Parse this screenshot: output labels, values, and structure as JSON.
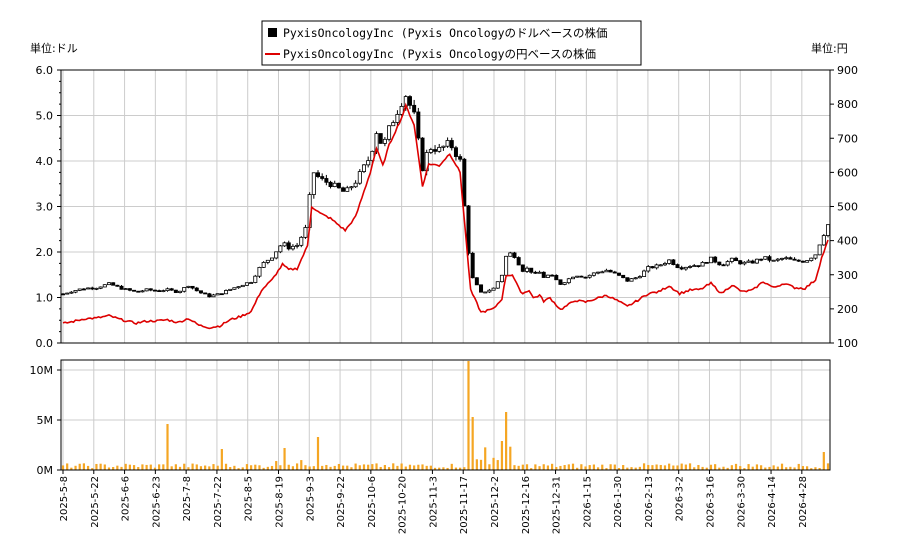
{
  "chart_data": [
    {
      "type": "candlestick",
      "panel": "price",
      "legend": [
        {
          "label": "PyxisOncologyInc (Pyxis Oncologyのドルベースの株価",
          "color": "#000000",
          "marker": "square"
        },
        {
          "label": "PyxisOncologyInc (Pyxis Oncologyの円ベースの株価",
          "color": "#dd0000",
          "marker": "line"
        }
      ],
      "left_unit": "単位:ドル",
      "right_unit": "単位:円",
      "y_left": {
        "min": 0.0,
        "max": 6.0,
        "ticks": [
          "0.0",
          "1.0",
          "2.0",
          "3.0",
          "4.0",
          "5.0",
          "6.0"
        ]
      },
      "y_right": {
        "min": 100,
        "max": 900,
        "ticks": [
          "100",
          "200",
          "300",
          "400",
          "500",
          "600",
          "700",
          "800",
          "900"
        ]
      },
      "grid": true,
      "x_dates": [
        "2025-5-8",
        "2025-5-22",
        "2025-6-6",
        "2025-6-23",
        "2025-7-8",
        "2025-7-22",
        "2025-8-5",
        "2025-8-19",
        "2025-9-3",
        "2025-9-22",
        "2025-10-6",
        "2025-10-20",
        "2025-11-3",
        "2025-11-17",
        "2025-12-2",
        "2025-12-16",
        "2025-12-31",
        "2026-1-15",
        "2026-1-30",
        "2026-2-13",
        "2026-3-2",
        "2026-3-16",
        "2026-3-30",
        "2026-4-14",
        "2026-4-28"
      ],
      "series": [
        {
          "name": "ドル",
          "axis": "left",
          "color": "#000000",
          "x": [
            0,
            5,
            10,
            16,
            22,
            28,
            35,
            40,
            45,
            50,
            55,
            60,
            65,
            70,
            75,
            80,
            85,
            90,
            95,
            100,
            105,
            108,
            112,
            117,
            119,
            123,
            128,
            135,
            140,
            147,
            150,
            153,
            156,
            162,
            164,
            168,
            172,
            175,
            180,
            185,
            190,
            195,
            200,
            206,
            210,
            212,
            215,
            218,
            220,
            223,
            225,
            228,
            230,
            233,
            238,
            240,
            245,
            250,
            255,
            260,
            265,
            270,
            275,
            280,
            285,
            290,
            295,
            300,
            305,
            310,
            315,
            320,
            325,
            330,
            335,
            340,
            345,
            350,
            355,
            360,
            363,
            366
          ],
          "values": [
            1.08,
            1.15,
            1.2,
            1.22,
            1.3,
            1.2,
            1.12,
            1.17,
            1.15,
            1.17,
            1.12,
            1.27,
            1.12,
            1.03,
            1.08,
            1.18,
            1.27,
            1.35,
            1.72,
            1.9,
            2.2,
            2.1,
            2.15,
            2.6,
            3.8,
            3.6,
            3.5,
            3.3,
            3.55,
            4.1,
            4.65,
            4.3,
            4.7,
            5.3,
            5.45,
            5.0,
            3.85,
            4.3,
            4.25,
            4.4,
            4.0,
            1.5,
            1.1,
            1.2,
            1.5,
            1.9,
            2.0,
            1.75,
            1.6,
            1.65,
            1.5,
            1.55,
            1.45,
            1.5,
            1.3,
            1.35,
            1.5,
            1.45,
            1.55,
            1.6,
            1.5,
            1.37,
            1.45,
            1.65,
            1.7,
            1.82,
            1.65,
            1.7,
            1.72,
            1.85,
            1.72,
            1.83,
            1.75,
            1.78,
            1.88,
            1.8,
            1.87,
            1.8,
            1.8,
            1.95,
            2.3,
            2.6
          ]
        },
        {
          "name": "円",
          "axis": "right",
          "color": "#dd0000",
          "x": [
            0,
            5,
            10,
            16,
            22,
            28,
            35,
            40,
            45,
            50,
            55,
            60,
            65,
            70,
            75,
            80,
            85,
            90,
            95,
            100,
            105,
            108,
            112,
            117,
            119,
            123,
            128,
            135,
            140,
            147,
            150,
            153,
            156,
            162,
            164,
            168,
            172,
            175,
            180,
            185,
            190,
            195,
            200,
            206,
            210,
            212,
            215,
            218,
            220,
            223,
            225,
            228,
            230,
            233,
            238,
            240,
            245,
            250,
            255,
            260,
            265,
            270,
            275,
            280,
            285,
            290,
            295,
            300,
            305,
            310,
            315,
            320,
            325,
            330,
            335,
            340,
            345,
            350,
            355,
            360,
            363,
            366
          ],
          "values": [
            157,
            163,
            171,
            173,
            180,
            168,
            158,
            164,
            165,
            168,
            160,
            172,
            152,
            145,
            150,
            168,
            178,
            192,
            255,
            285,
            330,
            315,
            318,
            385,
            500,
            480,
            465,
            430,
            470,
            600,
            670,
            620,
            680,
            760,
            795,
            740,
            560,
            625,
            620,
            655,
            600,
            255,
            190,
            200,
            230,
            298,
            300,
            260,
            245,
            255,
            232,
            240,
            223,
            232,
            198,
            205,
            225,
            220,
            230,
            240,
            225,
            207,
            225,
            245,
            250,
            268,
            245,
            255,
            257,
            275,
            245,
            270,
            250,
            255,
            280,
            262,
            275,
            262,
            260,
            285,
            350,
            400
          ]
        }
      ]
    },
    {
      "type": "bar",
      "panel": "volume",
      "color": "#f5a623",
      "y": {
        "min": 0,
        "max": 11,
        "unit": "M",
        "ticks": [
          "0M",
          "5M",
          "10M"
        ]
      },
      "grid": true,
      "peaks": [
        {
          "x": 50,
          "value": 4.6
        },
        {
          "x": 77,
          "value": 2.1
        },
        {
          "x": 107,
          "value": 2.2
        },
        {
          "x": 122,
          "value": 3.3
        },
        {
          "x": 195,
          "value": 10.9
        },
        {
          "x": 196,
          "value": 5.3
        },
        {
          "x": 210,
          "value": 2.9
        },
        {
          "x": 212,
          "value": 5.8
        },
        {
          "x": 365,
          "value": 1.8
        }
      ],
      "baseline": 0.45
    }
  ]
}
